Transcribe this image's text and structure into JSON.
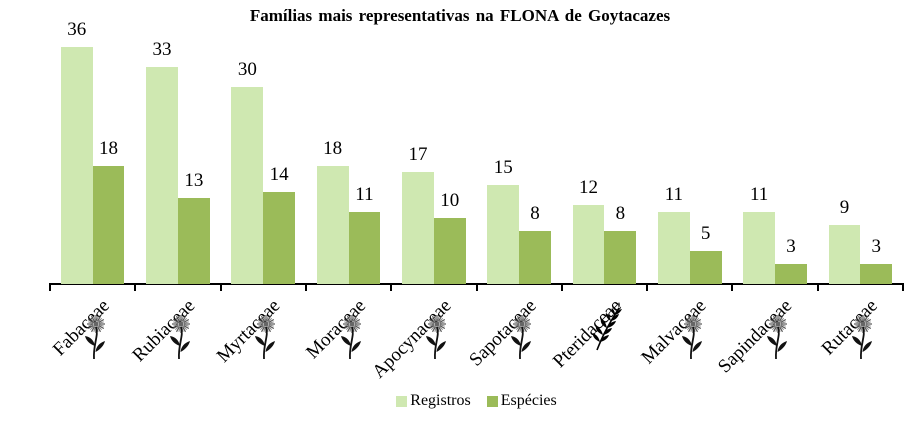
{
  "chart_data": {
    "type": "bar",
    "title": "Famílias mais representativas na FLONA de Goytacazes",
    "categories": [
      "Fabaceae",
      "Rubiaceae",
      "Myrtaceae",
      "Moraceae",
      "Apocynaceae",
      "Sapotaceae",
      "Pteridaceae",
      "Malvaceae",
      "Sapindaceae",
      "Rutaceae"
    ],
    "category_icons": [
      "flower-icon",
      "flower-icon",
      "flower-icon",
      "flower-icon",
      "flower-icon",
      "flower-icon",
      "fern-icon",
      "flower-icon",
      "flower-icon",
      "flower-icon"
    ],
    "series": [
      {
        "name": "Registros",
        "color": "#cfe8b1",
        "values": [
          36,
          33,
          30,
          18,
          17,
          15,
          12,
          11,
          11,
          9
        ]
      },
      {
        "name": "Espécies",
        "color": "#9bbb59",
        "values": [
          18,
          13,
          14,
          11,
          10,
          8,
          8,
          5,
          3,
          3
        ]
      }
    ],
    "ylim": [
      0,
      36
    ],
    "grid": false,
    "legend_position": "bottom",
    "axis_color": "#000000",
    "xlabel": "",
    "ylabel": ""
  }
}
